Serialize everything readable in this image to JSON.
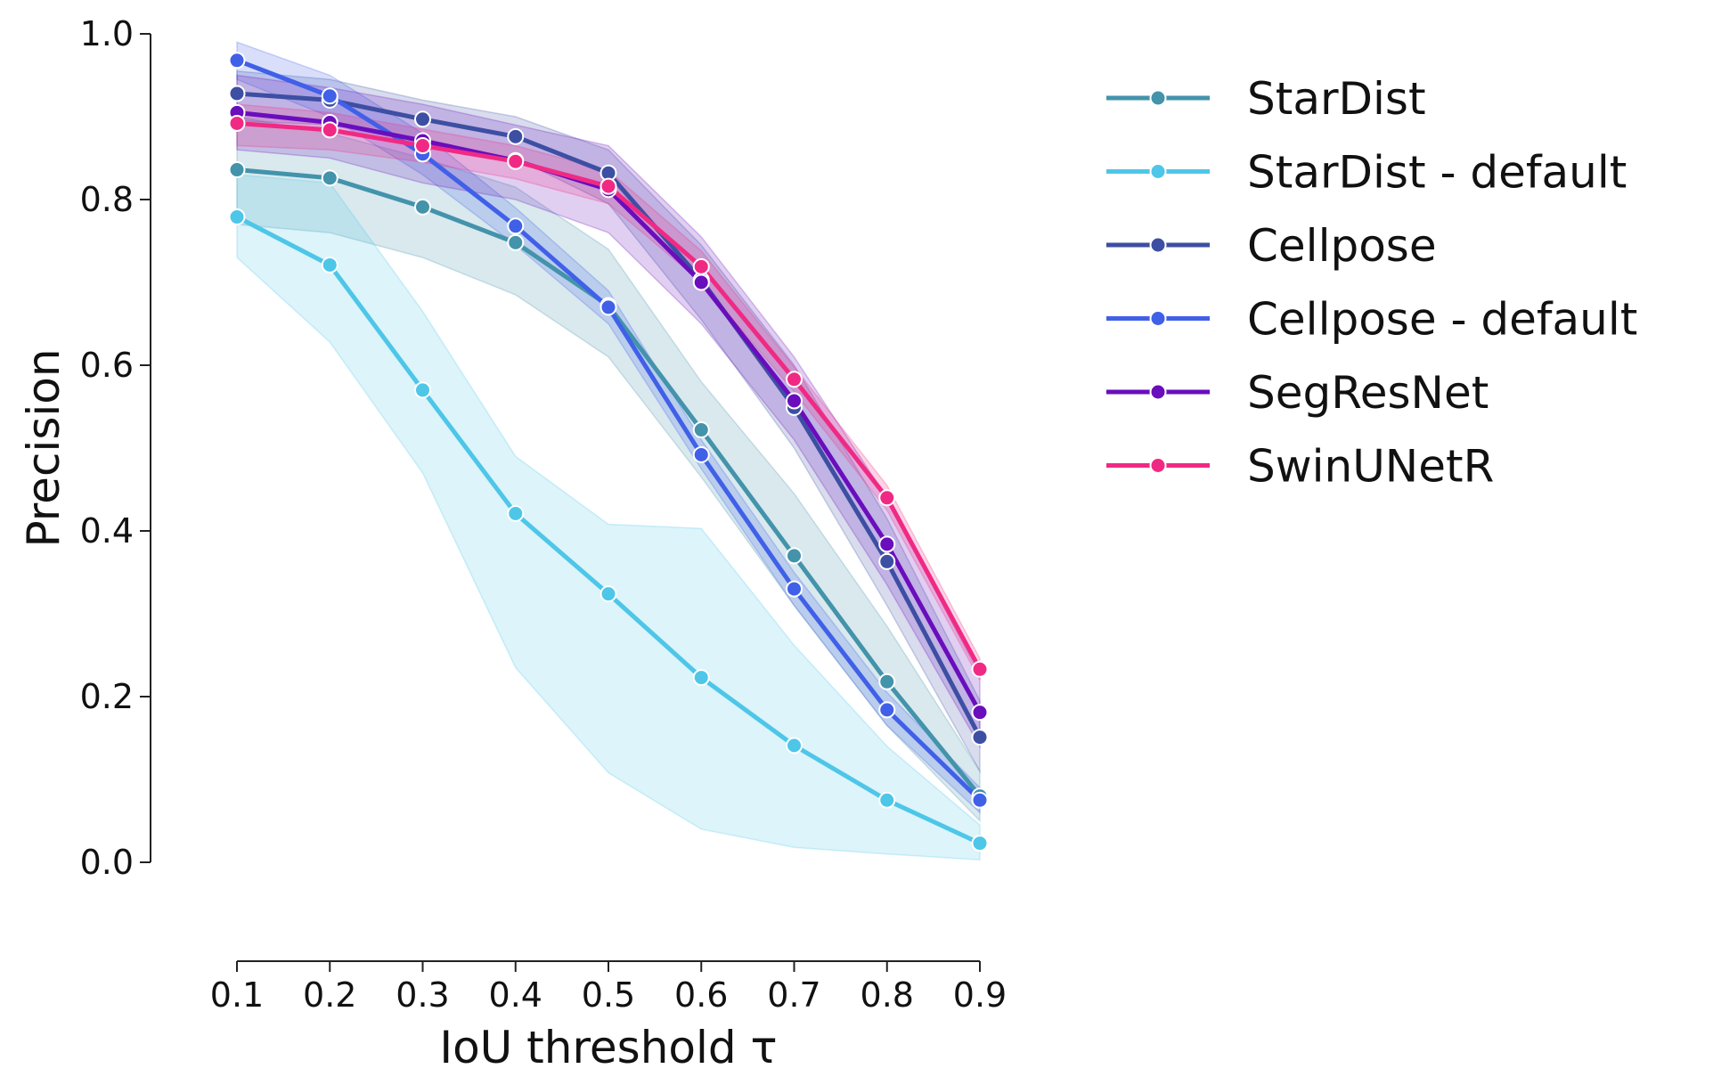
{
  "chart_data": {
    "type": "line",
    "title": "",
    "xlabel": "IoU threshold τ",
    "ylabel": "Precision",
    "x": [
      0.1,
      0.2,
      0.3,
      0.4,
      0.5,
      0.6,
      0.7,
      0.8,
      0.9
    ],
    "x_ticks": [
      "0.1",
      "0.2",
      "0.3",
      "0.4",
      "0.5",
      "0.6",
      "0.7",
      "0.8",
      "0.9"
    ],
    "y_ticks": [
      "0.0",
      "0.2",
      "0.4",
      "0.6",
      "0.8",
      "1.0"
    ],
    "xlim": [
      0.1,
      0.9
    ],
    "ylim": [
      0.0,
      1.0
    ],
    "grid": false,
    "legend_position": "outside-right-top",
    "series": [
      {
        "name": "StarDist",
        "color": "#4393ab",
        "values": [
          0.836,
          0.826,
          0.791,
          0.748,
          0.672,
          0.522,
          0.37,
          0.218,
          0.08
        ],
        "lower": [
          0.77,
          0.76,
          0.73,
          0.685,
          0.61,
          0.465,
          0.31,
          0.165,
          0.05
        ],
        "upper": [
          0.9,
          0.88,
          0.85,
          0.815,
          0.74,
          0.58,
          0.445,
          0.285,
          0.11
        ]
      },
      {
        "name": "StarDist - default",
        "color": "#4ec6e8",
        "values": [
          0.779,
          0.721,
          0.57,
          0.421,
          0.324,
          0.223,
          0.141,
          0.075,
          0.023
        ],
        "lower": [
          0.73,
          0.628,
          0.47,
          0.235,
          0.108,
          0.04,
          0.018,
          0.01,
          0.003
        ],
        "upper": [
          0.83,
          0.82,
          0.665,
          0.49,
          0.408,
          0.403,
          0.262,
          0.14,
          0.045
        ]
      },
      {
        "name": "Cellpose",
        "color": "#3d4fa3",
        "values": [
          0.928,
          0.92,
          0.897,
          0.876,
          0.832,
          0.703,
          0.549,
          0.363,
          0.151
        ],
        "lower": [
          0.895,
          0.89,
          0.868,
          0.85,
          0.795,
          0.655,
          0.5,
          0.31,
          0.11
        ],
        "upper": [
          0.955,
          0.945,
          0.92,
          0.9,
          0.86,
          0.745,
          0.6,
          0.415,
          0.195
        ]
      },
      {
        "name": "Cellpose - default",
        "color": "#4060e8",
        "values": [
          0.968,
          0.925,
          0.855,
          0.768,
          0.67,
          0.492,
          0.33,
          0.184,
          0.075
        ],
        "lower": [
          0.945,
          0.9,
          0.83,
          0.745,
          0.65,
          0.475,
          0.31,
          0.165,
          0.06
        ],
        "upper": [
          0.99,
          0.95,
          0.88,
          0.79,
          0.69,
          0.51,
          0.35,
          0.205,
          0.09
        ]
      },
      {
        "name": "SegResNet",
        "color": "#6a0dbd",
        "values": [
          0.905,
          0.893,
          0.871,
          0.847,
          0.812,
          0.7,
          0.557,
          0.384,
          0.181
        ],
        "lower": [
          0.86,
          0.85,
          0.82,
          0.8,
          0.76,
          0.65,
          0.51,
          0.335,
          0.14
        ],
        "upper": [
          0.95,
          0.935,
          0.915,
          0.89,
          0.865,
          0.755,
          0.61,
          0.44,
          0.225
        ]
      },
      {
        "name": "SwinUNetR",
        "color": "#f02a84",
        "values": [
          0.892,
          0.884,
          0.865,
          0.846,
          0.816,
          0.719,
          0.583,
          0.44,
          0.233
        ],
        "lower": [
          0.865,
          0.86,
          0.845,
          0.825,
          0.795,
          0.7,
          0.568,
          0.425,
          0.22
        ],
        "upper": [
          0.915,
          0.905,
          0.885,
          0.865,
          0.835,
          0.738,
          0.598,
          0.455,
          0.246
        ]
      }
    ]
  }
}
